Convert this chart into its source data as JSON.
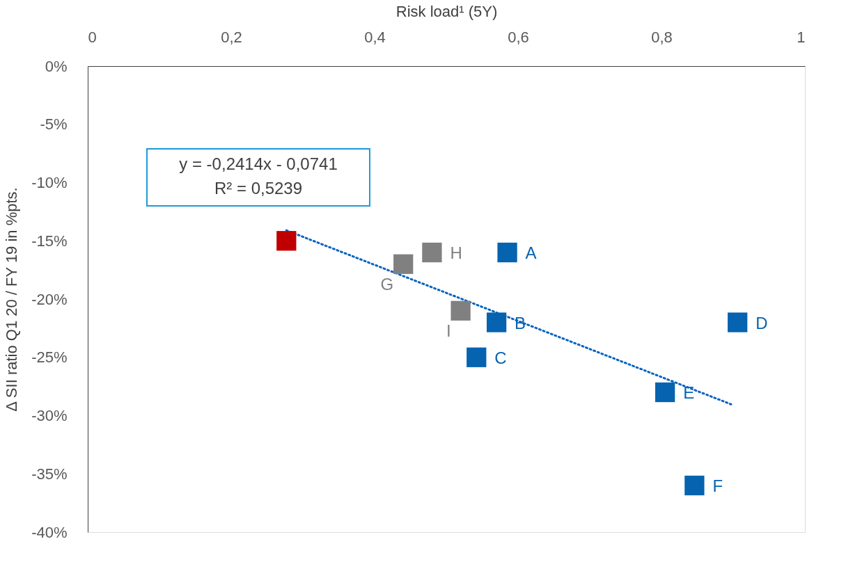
{
  "chart_data": {
    "type": "scatter",
    "xlabel": "Risk load¹ (5Y)",
    "ylabel": "Δ SII ratio Q1 20 / FY 19 in %pts.",
    "xlim": [
      0,
      1
    ],
    "xticks": [
      0,
      {
        "value": 0.2,
        "label": "0,2"
      },
      {
        "value": 0.4,
        "label": "0,4"
      },
      {
        "value": 0.6,
        "label": "0,6"
      },
      {
        "value": 0.8,
        "label": "0,8"
      },
      1
    ],
    "ylim": [
      -40,
      0
    ],
    "yticks": [
      {
        "value": 0,
        "label": "0%"
      },
      {
        "value": -5,
        "label": "-5%"
      },
      {
        "value": -10,
        "label": "-10%"
      },
      {
        "value": -15,
        "label": "-15%"
      },
      {
        "value": -20,
        "label": "-20%"
      },
      {
        "value": -25,
        "label": "-25%"
      },
      {
        "value": -30,
        "label": "-30%"
      },
      {
        "value": -35,
        "label": "-35%"
      },
      {
        "value": -40,
        "label": "-40%"
      }
    ],
    "grid": false,
    "marker": "square",
    "series": [
      {
        "type": "line",
        "color": "#0563c1",
        "line_style": "dotted",
        "marker": "none",
        "x": [
          0.277,
          0.9
        ],
        "values": [
          -14.1,
          -29.1
        ]
      },
      {
        "color": "#c00000",
        "x": [
          0.277
        ],
        "values": [
          -15
        ]
      },
      {
        "color": "#808080",
        "x": [
          0.44,
          0.48,
          0.52
        ],
        "values": [
          -17,
          -16,
          -21
        ],
        "value_labels": [
          "G",
          "H",
          "I"
        ]
      },
      {
        "color": "#0563b0",
        "x": [
          0.585,
          0.57,
          0.542,
          0.906,
          0.805,
          0.846
        ],
        "values": [
          -16,
          -22,
          -25,
          -22,
          -28,
          -36
        ],
        "value_labels": [
          "A",
          "B",
          "C",
          "D",
          "E",
          "F"
        ]
      }
    ],
    "annotations": [
      "y = -0,2414x - 0,0741",
      "R² = 0,5239"
    ]
  }
}
